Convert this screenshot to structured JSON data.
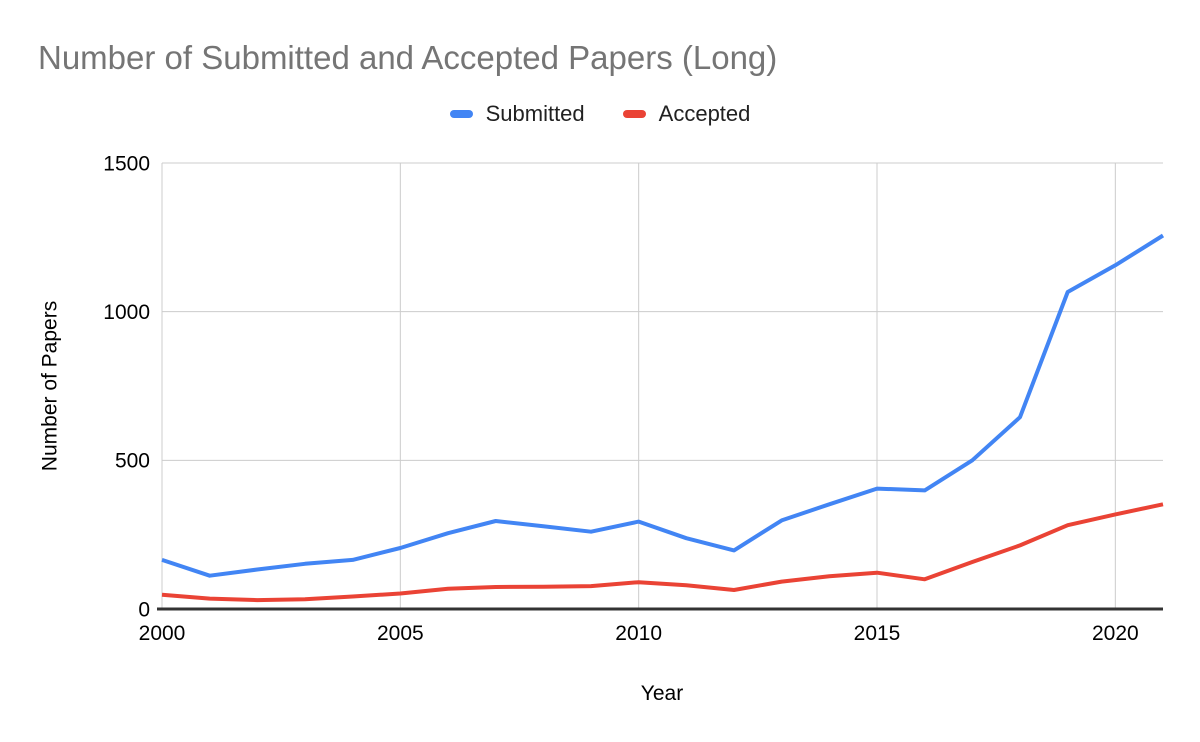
{
  "title": "Number of Submitted and Accepted Papers (Long)",
  "legend": [
    {
      "label": "Submitted",
      "color": "#4285F4"
    },
    {
      "label": "Accepted",
      "color": "#EA4335"
    }
  ],
  "chart_data": {
    "type": "line",
    "title": "Number of Submitted and Accepted Papers (Long)",
    "xlabel": "Year",
    "ylabel": "Number of Papers",
    "x": [
      2000,
      2001,
      2002,
      2003,
      2004,
      2005,
      2006,
      2007,
      2008,
      2009,
      2010,
      2011,
      2012,
      2013,
      2014,
      2015,
      2016,
      2017,
      2018,
      2019,
      2020,
      2021
    ],
    "series": [
      {
        "name": "Submitted",
        "color": "#4285F4",
        "values": [
          165,
          112,
          133,
          152,
          165,
          205,
          255,
          296,
          278,
          260,
          294,
          238,
          197,
          298,
          352,
          405,
          399,
          500,
          645,
          1066,
          1156,
          1256
        ]
      },
      {
        "name": "Accepted",
        "color": "#EA4335",
        "values": [
          48,
          35,
          30,
          33,
          42,
          52,
          68,
          74,
          75,
          77,
          90,
          80,
          64,
          92,
          110,
          122,
          100,
          158,
          214,
          282,
          318,
          352
        ]
      }
    ],
    "ylim": [
      0,
      1500
    ],
    "yticks": [
      0,
      500,
      1000,
      1500
    ],
    "xticks": [
      2000,
      2005,
      2010,
      2015,
      2020
    ],
    "grid": true,
    "legend_position": "top"
  },
  "colors": {
    "title_text": "#757575",
    "gridline": "#cccccc",
    "axis_line": "#333333",
    "tick_text": "#000000",
    "background": "#ffffff"
  }
}
